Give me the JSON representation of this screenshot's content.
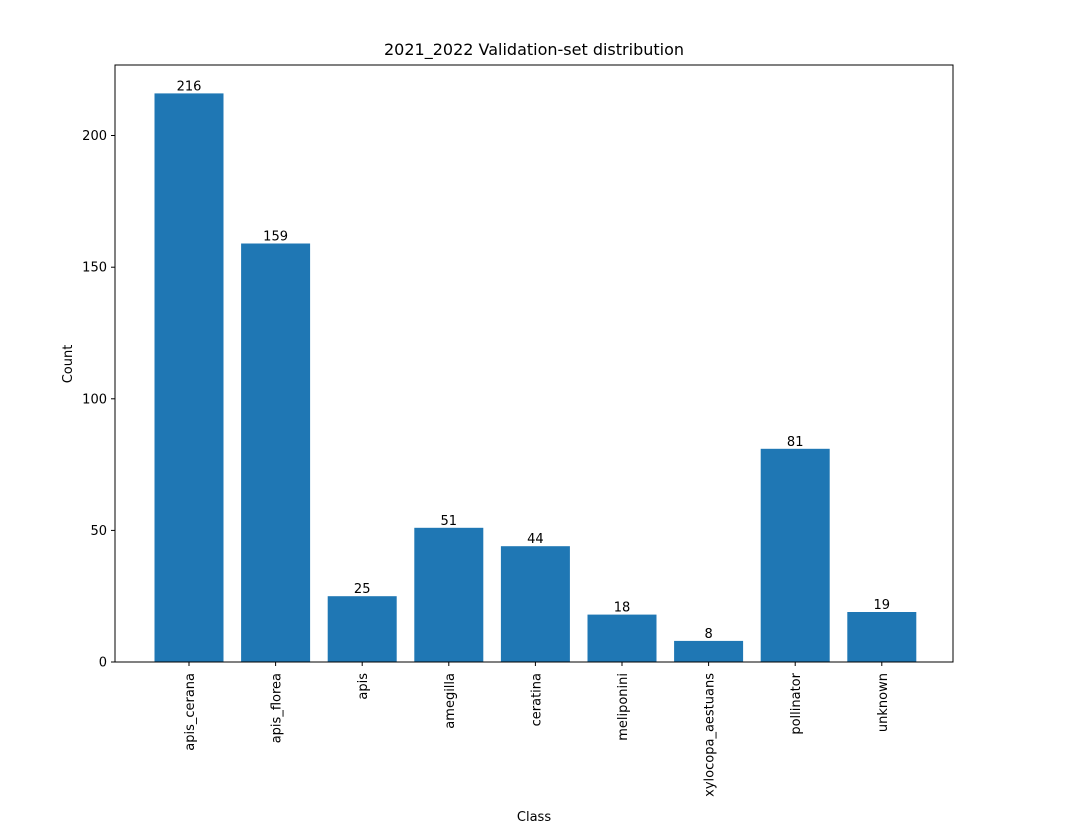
{
  "chart_data": {
    "type": "bar",
    "title": "2021_2022 Validation-set distribution",
    "xlabel": "Class",
    "ylabel": "Count",
    "categories": [
      "apis_cerana",
      "apis_florea",
      "apis",
      "amegilla",
      "ceratina",
      "meliponini",
      "xylocopa_aestuans",
      "pollinator",
      "unknown"
    ],
    "values": [
      216,
      159,
      25,
      51,
      44,
      18,
      8,
      81,
      19
    ],
    "ylim": [
      0,
      226.8
    ],
    "yticks": [
      0,
      50,
      100,
      150,
      200
    ],
    "bar_color": "#1f77b4",
    "grid": false,
    "legend": "none"
  }
}
